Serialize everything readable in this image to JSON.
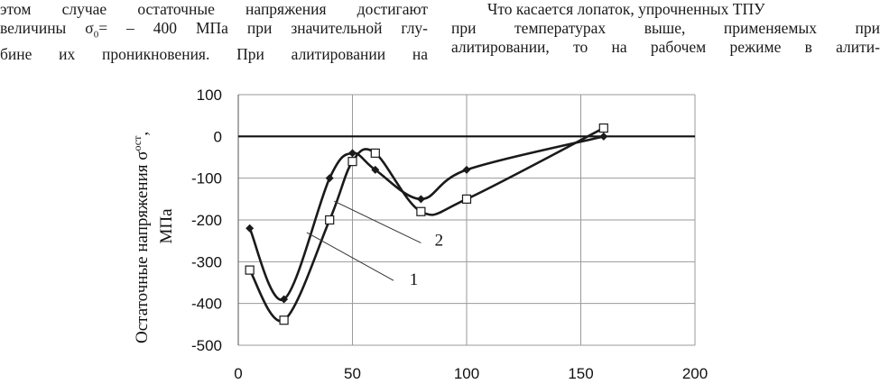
{
  "text_left": {
    "line1": "этом случае остаточные напряжения достигают",
    "line2_pre": "величины σ",
    "line2_sub": "0",
    "line2_post": "= – 400 МПа при значительной глу-",
    "line3": "бине их проникновения. При алитировании на"
  },
  "text_right": {
    "line1": "Что касается лопаток, упрочненных ТПУ",
    "line2": "при температурах выше, применяемых при",
    "line3": "алитировании, то на рабочем режиме в алити-"
  },
  "chart_data": {
    "type": "line",
    "ylabel_line1": "Остаточные напряжения σ",
    "ylabel_sub": "ост",
    "ylabel_sub_sep": ",",
    "ylabel_line2": "МПа",
    "xlim": [
      0,
      200
    ],
    "ylim": [
      -500,
      100
    ],
    "xticks": [
      "0",
      "50",
      "100",
      "150",
      "200"
    ],
    "yticks": [
      "100",
      "0",
      "-100",
      "-200",
      "-300",
      "-400",
      "-500"
    ],
    "ytick_values": [
      100,
      0,
      -100,
      -200,
      -300,
      -400,
      -500
    ],
    "xtick_values": [
      0,
      50,
      100,
      150,
      200
    ],
    "grid": true,
    "series": [
      {
        "name": "1",
        "marker": "square",
        "color": "#1a1a1a",
        "x": [
          5,
          20,
          40,
          50,
          60,
          80,
          100,
          160
        ],
        "y": [
          -320,
          -440,
          -200,
          -60,
          -40,
          -180,
          -150,
          20
        ]
      },
      {
        "name": "2",
        "marker": "diamond",
        "color": "#1a1a1a",
        "x": [
          5,
          20,
          40,
          50,
          60,
          80,
          100,
          160
        ],
        "y": [
          -220,
          -390,
          -100,
          -40,
          -80,
          -150,
          -80,
          0
        ]
      }
    ]
  }
}
